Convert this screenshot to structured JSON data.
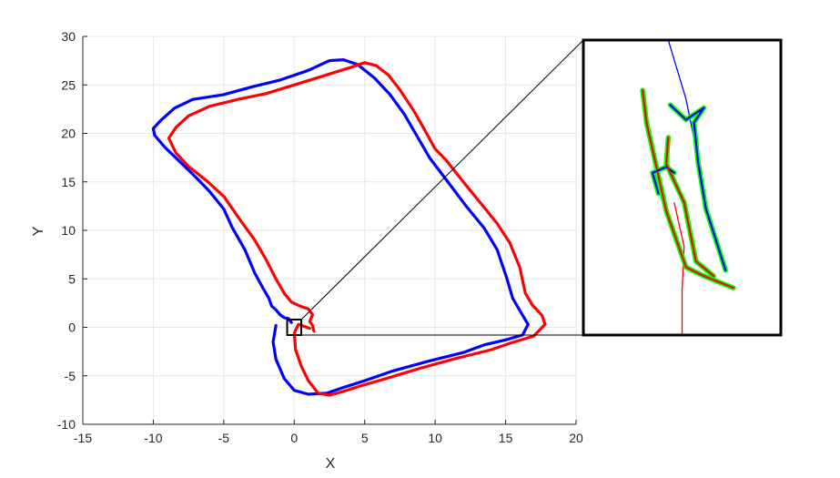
{
  "chart_data": {
    "type": "line",
    "xlabel": "X",
    "ylabel": "Y",
    "xlim": [
      -15,
      20
    ],
    "ylim": [
      -10,
      30
    ],
    "xticks": [
      -15,
      -10,
      -5,
      0,
      5,
      10,
      15,
      20
    ],
    "yticks": [
      -10,
      -5,
      0,
      5,
      10,
      15,
      20,
      25,
      30
    ],
    "grid": true,
    "series": [
      {
        "color": "#0000ff",
        "points": [
          [
            -0.2,
            0.5
          ],
          [
            -0.4,
            0.9
          ],
          [
            -0.7,
            1.0
          ],
          [
            -1.0,
            1.3
          ],
          [
            -1.3,
            1.8
          ],
          [
            -1.6,
            2.2
          ],
          [
            -1.8,
            3.0
          ],
          [
            -2.2,
            4.0
          ],
          [
            -2.8,
            5.6
          ],
          [
            -3.5,
            8.0
          ],
          [
            -4.4,
            10.3
          ],
          [
            -5.0,
            12.2
          ],
          [
            -6.0,
            14.0
          ],
          [
            -7.0,
            15.5
          ],
          [
            -8.2,
            17.2
          ],
          [
            -9.2,
            18.6
          ],
          [
            -9.9,
            19.8
          ],
          [
            -10.0,
            20.5
          ],
          [
            -9.5,
            21.3
          ],
          [
            -8.5,
            22.6
          ],
          [
            -7.2,
            23.5
          ],
          [
            -5.0,
            24.0
          ],
          [
            -3.0,
            24.8
          ],
          [
            -1.0,
            25.5
          ],
          [
            1.0,
            26.5
          ],
          [
            2.5,
            27.5
          ],
          [
            3.5,
            27.6
          ],
          [
            4.5,
            27.1
          ],
          [
            5.7,
            25.7
          ],
          [
            6.8,
            24.0
          ],
          [
            7.8,
            22.0
          ],
          [
            8.6,
            20.0
          ],
          [
            9.6,
            17.5
          ],
          [
            10.8,
            15.2
          ],
          [
            12.2,
            12.5
          ],
          [
            13.5,
            10.2
          ],
          [
            14.4,
            8.0
          ],
          [
            15.1,
            5.0
          ],
          [
            15.5,
            3.0
          ],
          [
            16.1,
            1.5
          ],
          [
            16.6,
            0.3
          ],
          [
            16.2,
            -0.8
          ],
          [
            15.0,
            -1.3
          ],
          [
            13.5,
            -1.8
          ],
          [
            12.0,
            -2.6
          ],
          [
            9.5,
            -3.5
          ],
          [
            7.0,
            -4.5
          ],
          [
            5.0,
            -5.5
          ],
          [
            3.5,
            -6.2
          ],
          [
            2.3,
            -6.8
          ],
          [
            1.0,
            -6.9
          ],
          [
            0.0,
            -6.5
          ],
          [
            -0.7,
            -5.3
          ],
          [
            -1.3,
            -3.3
          ],
          [
            -1.5,
            -1.5
          ],
          [
            -1.3,
            0.2
          ]
        ]
      },
      {
        "color": "#ff0000",
        "points": [
          [
            1.4,
            -0.4
          ],
          [
            1.3,
            0.2
          ],
          [
            1.1,
            0.6
          ],
          [
            1.3,
            1.3
          ],
          [
            1.0,
            1.9
          ],
          [
            0.4,
            2.2
          ],
          [
            -0.2,
            2.6
          ],
          [
            -0.7,
            3.5
          ],
          [
            -1.3,
            5.0
          ],
          [
            -2.0,
            7.0
          ],
          [
            -2.8,
            9.0
          ],
          [
            -3.8,
            11.0
          ],
          [
            -5.0,
            13.5
          ],
          [
            -6.2,
            15.1
          ],
          [
            -7.5,
            16.6
          ],
          [
            -8.4,
            18.0
          ],
          [
            -8.9,
            19.5
          ],
          [
            -8.4,
            20.6
          ],
          [
            -7.5,
            21.8
          ],
          [
            -6.0,
            22.8
          ],
          [
            -4.0,
            23.5
          ],
          [
            -2.0,
            24.1
          ],
          [
            0.0,
            25.0
          ],
          [
            2.0,
            25.9
          ],
          [
            4.0,
            26.8
          ],
          [
            5.0,
            27.3
          ],
          [
            5.8,
            27.0
          ],
          [
            6.7,
            26.0
          ],
          [
            7.5,
            24.5
          ],
          [
            8.5,
            22.3
          ],
          [
            9.2,
            20.5
          ],
          [
            10.0,
            18.4
          ],
          [
            10.8,
            17.2
          ],
          [
            12.0,
            15.0
          ],
          [
            13.4,
            12.5
          ],
          [
            14.4,
            10.7
          ],
          [
            15.3,
            8.7
          ],
          [
            16.0,
            6.2
          ],
          [
            16.4,
            3.5
          ],
          [
            16.9,
            2.3
          ],
          [
            17.6,
            1.2
          ],
          [
            17.8,
            0.3
          ],
          [
            17.0,
            -0.9
          ],
          [
            15.4,
            -1.6
          ],
          [
            14.0,
            -2.3
          ],
          [
            11.5,
            -3.2
          ],
          [
            9.0,
            -4.2
          ],
          [
            6.5,
            -5.3
          ],
          [
            4.8,
            -6.0
          ],
          [
            3.5,
            -6.6
          ],
          [
            2.5,
            -7.0
          ],
          [
            1.7,
            -6.8
          ],
          [
            1.0,
            -5.5
          ],
          [
            0.5,
            -4.0
          ],
          [
            0.1,
            -2.3
          ],
          [
            0.0,
            -0.6
          ],
          [
            0.3,
            0.3
          ],
          [
            1.1,
            -0.1
          ]
        ]
      }
    ],
    "inset_source_box": {
      "x": [
        -0.5,
        0.5
      ],
      "y": [
        -0.8,
        0.8
      ]
    },
    "inset": {
      "description_hidden": true,
      "blue_thin_line": [
        [
          0.43,
          0.0
        ],
        [
          0.52,
          0.2
        ],
        [
          0.58,
          0.4
        ]
      ],
      "red_thin_line": [
        [
          0.5,
          1.0
        ],
        [
          0.5,
          0.85
        ],
        [
          0.51,
          0.7
        ],
        [
          0.46,
          0.55
        ]
      ],
      "green_paths": [
        [
          [
            0.3,
            0.17
          ],
          [
            0.32,
            0.28
          ],
          [
            0.37,
            0.43
          ],
          [
            0.42,
            0.58
          ],
          [
            0.52,
            0.77
          ],
          [
            0.61,
            0.8
          ],
          [
            0.76,
            0.84
          ]
        ],
        [
          [
            0.38,
            0.52
          ],
          [
            0.35,
            0.45
          ],
          [
            0.42,
            0.43
          ],
          [
            0.46,
            0.45
          ]
        ],
        [
          [
            0.43,
            0.33
          ],
          [
            0.42,
            0.42
          ],
          [
            0.51,
            0.55
          ],
          [
            0.57,
            0.75
          ],
          [
            0.66,
            0.8
          ]
        ],
        [
          [
            0.44,
            0.22
          ],
          [
            0.52,
            0.27
          ],
          [
            0.61,
            0.23
          ],
          [
            0.56,
            0.28
          ],
          [
            0.58,
            0.41
          ],
          [
            0.62,
            0.57
          ],
          [
            0.72,
            0.78
          ]
        ]
      ],
      "green_overlays": [
        {
          "color": "#00ff00",
          "width": 5.5
        },
        {
          "color": "#ff0000",
          "width": 2
        },
        {
          "color": "#0000ff",
          "width": 2
        }
      ]
    }
  }
}
